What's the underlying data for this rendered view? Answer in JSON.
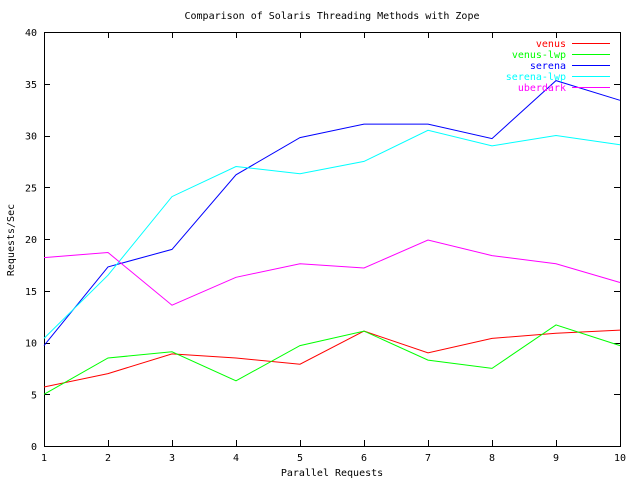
{
  "chart_data": {
    "type": "line",
    "title": "Comparison of Solaris Threading Methods with Zope",
    "xlabel": "Parallel Requests",
    "ylabel": "Requests/Sec",
    "xlim": [
      1,
      10
    ],
    "ylim": [
      0,
      40
    ],
    "x_ticks": [
      1,
      2,
      3,
      4,
      5,
      6,
      7,
      8,
      9,
      10
    ],
    "y_ticks": [
      0,
      5,
      10,
      15,
      20,
      25,
      30,
      35,
      40
    ],
    "grid": false,
    "legend_position": "top-right",
    "x": [
      1,
      2,
      3,
      4,
      5,
      6,
      7,
      8,
      9,
      10
    ],
    "series": [
      {
        "name": "venus",
        "color": "#ff0000",
        "values": [
          5.7,
          7.0,
          8.9,
          8.5,
          7.9,
          11.1,
          9.0,
          10.4,
          10.9,
          11.2
        ]
      },
      {
        "name": "venus-lwp",
        "color": "#00ff00",
        "values": [
          5.0,
          8.5,
          9.1,
          6.3,
          9.7,
          11.1,
          8.3,
          7.5,
          11.7,
          9.7
        ]
      },
      {
        "name": "serena",
        "color": "#0000ff",
        "values": [
          9.7,
          17.3,
          19.0,
          26.2,
          29.8,
          31.1,
          31.1,
          29.7,
          35.3,
          33.4
        ]
      },
      {
        "name": "serena-lwp",
        "color": "#00ffff",
        "values": [
          10.4,
          16.5,
          24.1,
          27.0,
          26.3,
          27.5,
          30.5,
          29.0,
          30.0,
          29.1
        ]
      },
      {
        "name": "uberdark",
        "color": "#ff00ff",
        "values": [
          18.2,
          18.7,
          13.6,
          16.3,
          17.6,
          17.2,
          19.9,
          18.4,
          17.6,
          15.8
        ]
      }
    ]
  }
}
